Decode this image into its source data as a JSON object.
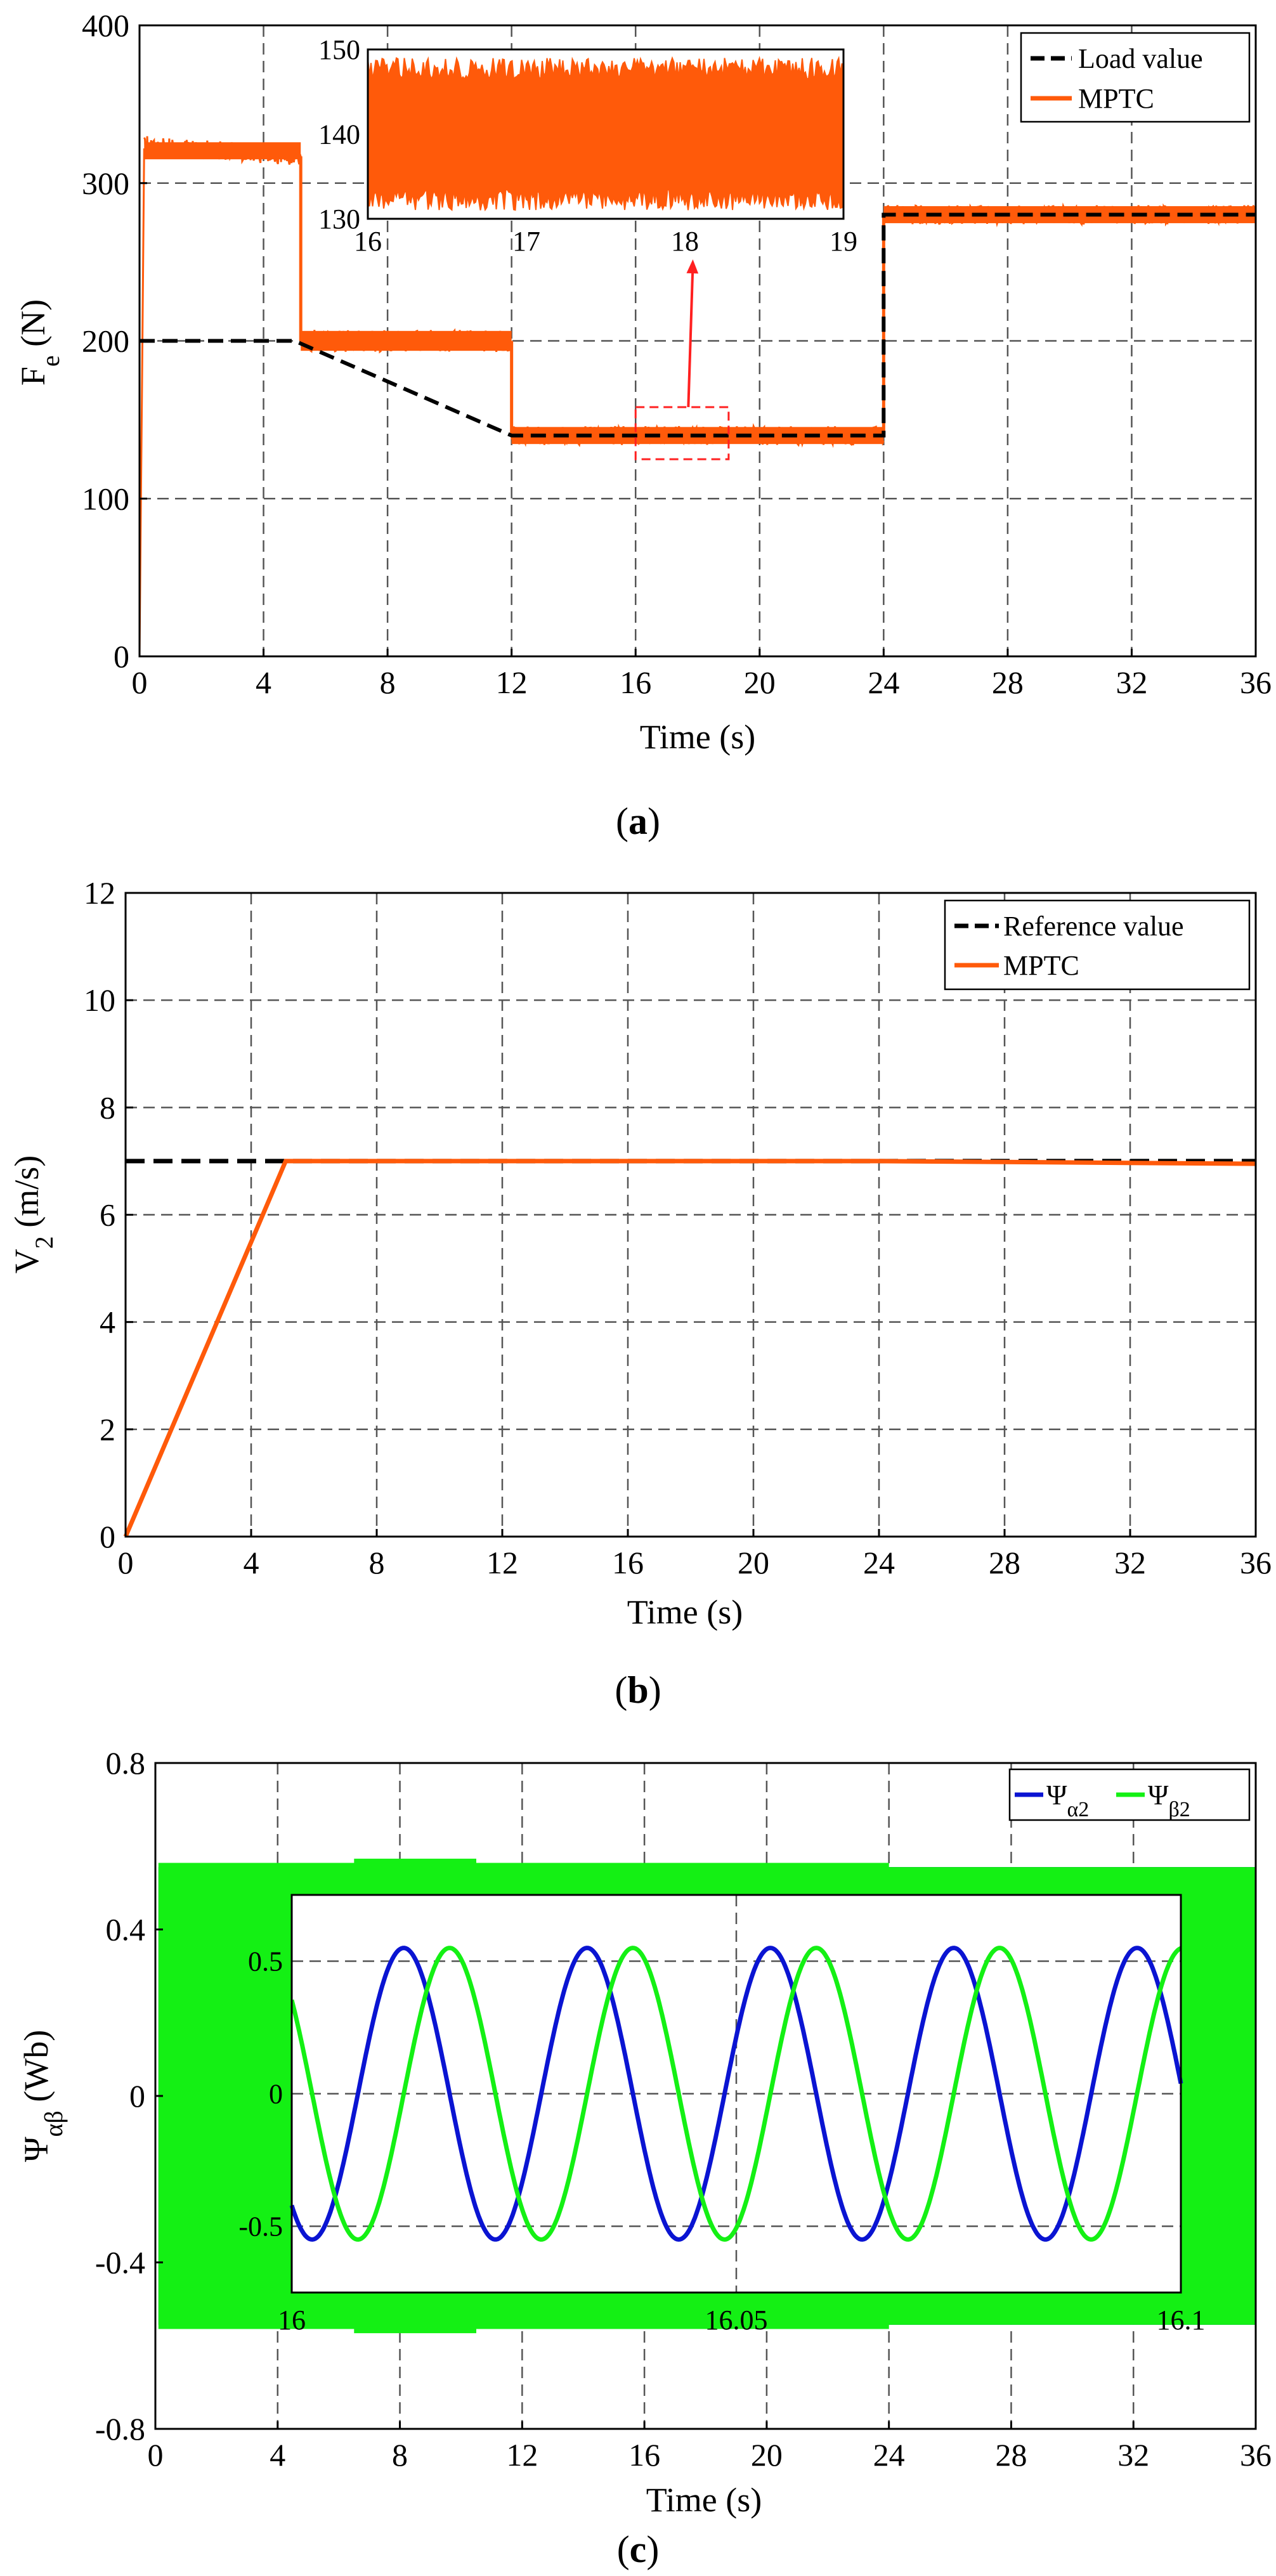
{
  "figure": {
    "captions": [
      "(a)",
      "(b)",
      "(c)"
    ]
  },
  "chart_data": [
    {
      "type": "line",
      "id": "a",
      "caption_letter": "a",
      "ylabel_main": "F",
      "ylabel_sub": "e",
      "ylabel_unit": " (N)",
      "xlabel": "Time (s)",
      "xlim": [
        0,
        36
      ],
      "ylim": [
        0,
        400
      ],
      "xticks": [
        0,
        4,
        8,
        12,
        16,
        20,
        24,
        28,
        32,
        36
      ],
      "yticks": [
        0,
        100,
        200,
        300,
        400
      ],
      "grid": true,
      "legend_position": "top-right",
      "legend": [
        "Load value",
        "MPTC"
      ],
      "colors": {
        "load": "#000000",
        "mptc": "#ff5a0a",
        "zoom_box": "#ff2020",
        "arrow": "#ff2020"
      },
      "series": [
        {
          "name": "Load value",
          "style": "dashed",
          "points": [
            [
              0,
              200
            ],
            [
              5,
              200
            ],
            [
              5,
              200
            ],
            [
              12,
              140
            ],
            [
              24,
              140
            ],
            [
              24,
              280
            ],
            [
              36,
              280
            ]
          ]
        },
        {
          "name": "MPTC",
          "style": "solid",
          "segments": [
            {
              "x0": 0,
              "x1": 0.15,
              "y_start": 0,
              "y_end": 322,
              "noise": 0
            },
            {
              "x0": 0.15,
              "x1": 5.2,
              "y_start": 324,
              "y_end": 317,
              "noise": 12
            },
            {
              "x0": 5.2,
              "x1": 12.0,
              "y_start": 200,
              "y_end": 200,
              "noise": 14
            },
            {
              "x0": 12.0,
              "x1": 24.0,
              "y_start": 140,
              "y_end": 140,
              "noise": 12
            },
            {
              "x0": 24.0,
              "x1": 36.0,
              "y_start": 280,
              "y_end": 280,
              "noise": 12
            }
          ]
        }
      ],
      "zoom_region": {
        "x": [
          16,
          19
        ],
        "y": [
          125,
          158
        ]
      },
      "inset": {
        "xlim": [
          16,
          19
        ],
        "ylim": [
          130,
          150
        ],
        "xticks": [
          16,
          17,
          18,
          19
        ],
        "yticks": [
          130,
          140,
          150
        ],
        "band": [
          131,
          149
        ]
      }
    },
    {
      "type": "line",
      "id": "b",
      "caption_letter": "b",
      "ylabel_main": "V",
      "ylabel_sub": "2",
      "ylabel_unit": " (m/s)",
      "xlabel": "Time (s)",
      "xlim": [
        0,
        36
      ],
      "ylim": [
        0,
        12
      ],
      "xticks": [
        0,
        4,
        8,
        12,
        16,
        20,
        24,
        28,
        32,
        36
      ],
      "yticks": [
        0,
        2,
        4,
        6,
        8,
        10,
        12
      ],
      "grid": true,
      "legend_position": "top-right",
      "legend": [
        "Reference value",
        "MPTC"
      ],
      "colors": {
        "reference": "#000000",
        "mptc": "#ff5a0a"
      },
      "series": [
        {
          "name": "Reference value",
          "style": "dashed",
          "x": [
            0,
            36
          ],
          "y": [
            7,
            7
          ]
        },
        {
          "name": "MPTC",
          "style": "solid",
          "x": [
            0,
            5.1,
            24,
            36
          ],
          "y": [
            0,
            7,
            7,
            6.95
          ]
        }
      ]
    },
    {
      "type": "line",
      "id": "c",
      "caption_letter": "c",
      "ylabel_main": "Ψ",
      "ylabel_sub": "αβ",
      "ylabel_unit": " (Wb)",
      "xlabel": "Time (s)",
      "xlim": [
        0,
        36
      ],
      "ylim": [
        -0.8,
        0.8
      ],
      "xticks": [
        0,
        4,
        8,
        12,
        16,
        20,
        24,
        28,
        32,
        36
      ],
      "yticks": [
        -0.8,
        -0.4,
        0,
        0.4,
        0.8
      ],
      "ytick_labels": [
        "-0.8",
        "-0.4",
        "0",
        "0.4",
        "0.8"
      ],
      "grid": true,
      "legend_position": "top-right",
      "legend": [
        {
          "main": "Ψ",
          "sub": "α2",
          "color": "#0a14d2"
        },
        {
          "main": "Ψ",
          "sub": "β2",
          "color": "#14f014"
        }
      ],
      "series": [
        {
          "name": "Ψα2",
          "color": "#0a14d2",
          "envelope": [
            [
              0.1,
              0.55
            ],
            [
              36,
              0.55
            ]
          ]
        },
        {
          "name": "Ψβ2",
          "color": "#14f014",
          "envelope": [
            [
              0.1,
              0.56
            ],
            [
              6.5,
              0.56
            ],
            [
              6.5,
              0.57
            ],
            [
              10.5,
              0.57
            ],
            [
              10.5,
              0.56
            ],
            [
              24,
              0.56
            ],
            [
              24,
              0.55
            ],
            [
              36,
              0.55
            ]
          ]
        }
      ],
      "inset": {
        "xlim": [
          16,
          16.1
        ],
        "ylim": [
          -0.75,
          0.75
        ],
        "xticks": [
          16,
          16.05,
          16.1
        ],
        "xtick_labels": [
          "16",
          "16.05",
          "16.1"
        ],
        "yticks": [
          -0.5,
          0,
          0.5
        ],
        "ytick_labels": [
          "-0.5",
          "0",
          "0.5"
        ],
        "amplitude": 0.55,
        "frequency_hz": 48.5,
        "alpha_phase_deg": -130,
        "beta_phase_deg": 140
      }
    }
  ]
}
